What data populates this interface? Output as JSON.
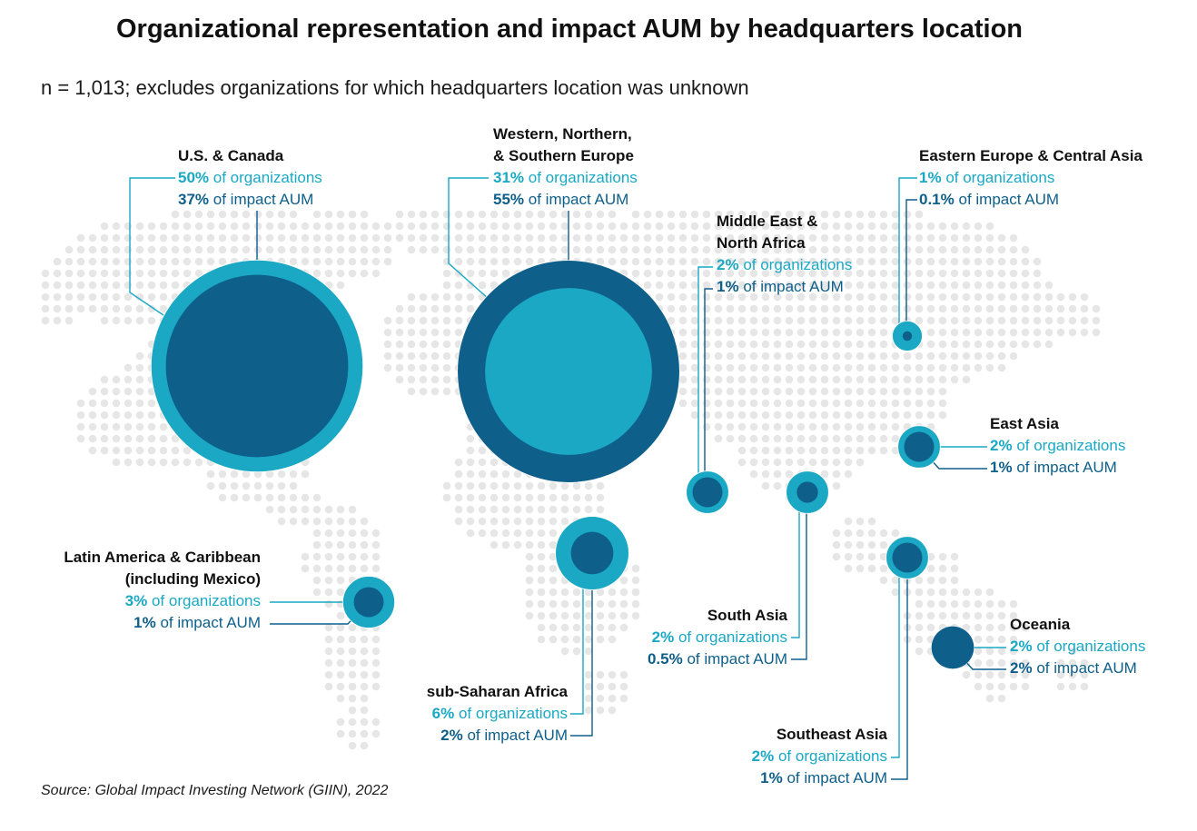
{
  "title": "Organizational representation and impact AUM by headquarters location",
  "subtitle": "n = 1,013; excludes organizations for which headquarters location was unknown",
  "source": "Source: Global Impact Investing Network (GIIN), 2022",
  "colors": {
    "organizations": "#1aa8c4",
    "impact_aum": "#0e5f8a",
    "map_dots": "#e6e6e6"
  },
  "labels": {
    "of_organizations": "of organizations",
    "of_impact_aum": "of impact AUM"
  },
  "regions": [
    {
      "key": "us",
      "name": "U.S. & Canada",
      "org_label": "50%",
      "aum_label": "37%"
    },
    {
      "key": "eu",
      "name": "Western, Northern, & Southern Europe",
      "org_label": "31%",
      "aum_label": "55%"
    },
    {
      "key": "me",
      "name": "Middle East & North Africa",
      "org_label": "2%",
      "aum_label": "1%"
    },
    {
      "key": "ee",
      "name": "Eastern Europe & Central Asia",
      "org_label": "1%",
      "aum_label": "0.1%"
    },
    {
      "key": "ea",
      "name": "East Asia",
      "org_label": "2%",
      "aum_label": "1%"
    },
    {
      "key": "la",
      "name": "Latin America & Caribbean (including Mexico)",
      "org_label": "3%",
      "aum_label": "1%"
    },
    {
      "key": "sa",
      "name": "South Asia",
      "org_label": "2%",
      "aum_label": "0.5%"
    },
    {
      "key": "oc",
      "name": "Oceania",
      "org_label": "2%",
      "aum_label": "2%"
    },
    {
      "key": "ssa",
      "name": "sub-Saharan Africa",
      "org_label": "6%",
      "aum_label": "2%"
    },
    {
      "key": "sea",
      "name": "Southeast Asia",
      "org_label": "2%",
      "aum_label": "1%"
    }
  ],
  "chart_data": {
    "type": "bubble-map",
    "title": "Organizational representation and impact AUM by headquarters location",
    "subtitle": "n = 1,013; excludes organizations for which headquarters location was unknown",
    "series": [
      {
        "name": "of organizations",
        "unit": "%",
        "values": [
          50,
          31,
          2,
          1,
          2,
          3,
          2,
          2,
          6,
          2
        ]
      },
      {
        "name": "of impact AUM",
        "unit": "%",
        "values": [
          37,
          55,
          1,
          0.1,
          1,
          1,
          0.5,
          2,
          2,
          1
        ]
      }
    ],
    "categories": [
      "U.S. & Canada",
      "Western, Northern, & Southern Europe",
      "Middle East & North Africa",
      "Eastern Europe & Central Asia",
      "East Asia",
      "Latin America & Caribbean (including Mexico)",
      "South Asia",
      "Oceania",
      "sub-Saharan Africa",
      "Southeast Asia"
    ]
  }
}
